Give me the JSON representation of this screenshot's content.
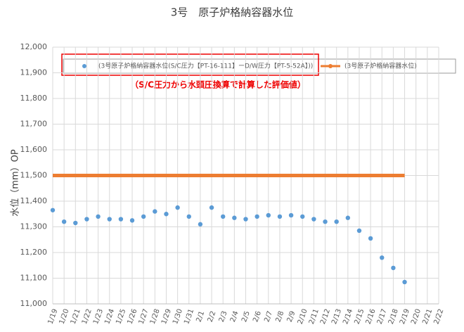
{
  "chart_data": {
    "type": "scatter-line",
    "title": "3号　原子炉格納容器水位",
    "y_label": "水位（mm）OP",
    "annotation": "（S/C圧力から水頭圧換算で計算した評価値）",
    "categories": [
      "1/19",
      "1/20",
      "1/21",
      "1/22",
      "1/23",
      "1/24",
      "1/25",
      "1/26",
      "1/27",
      "1/28",
      "1/29",
      "1/30",
      "1/31",
      "2/1",
      "2/2",
      "2/3",
      "2/4",
      "2/5",
      "2/6",
      "2/7",
      "2/8",
      "2/9",
      "2/10",
      "2/11",
      "2/12",
      "2/13",
      "2/14",
      "2/15",
      "2/16",
      "2/17",
      "2/18",
      "2/19",
      "2/20",
      "2/21",
      "2/22"
    ],
    "series": [
      {
        "name": "(3号原子炉格納容器水位(S/C圧力【PT-16-111】ーD/W圧力【PT-5-52A】))",
        "color": "#5b9bd5",
        "style": "markers",
        "values": [
          11365,
          11320,
          11315,
          11330,
          11340,
          11330,
          11330,
          11325,
          11340,
          11360,
          11350,
          11375,
          11340,
          11310,
          11375,
          11340,
          11335,
          11330,
          11340,
          11345,
          11340,
          11345,
          11340,
          11330,
          11320,
          11320,
          11335,
          11285,
          11255,
          11180,
          11140,
          11085,
          null,
          null,
          null
        ]
      },
      {
        "name": "(3号原子炉格納容器水位)",
        "color": "#ed7d31",
        "style": "line",
        "values": [
          11500,
          11500,
          11500,
          11500,
          11500,
          11500,
          11500,
          11500,
          11500,
          11500,
          11500,
          11500,
          11500,
          11500,
          11500,
          11500,
          11500,
          11500,
          11500,
          11500,
          11500,
          11500,
          11500,
          11500,
          11500,
          11500,
          11500,
          11500,
          11500,
          11500,
          11500,
          11500,
          null,
          null,
          null
        ]
      }
    ],
    "ylim": [
      11000,
      12000
    ],
    "yticks": [
      {
        "value": 11000,
        "label": "11,000"
      },
      {
        "value": 11100,
        "label": "11,100"
      },
      {
        "value": 11200,
        "label": "11,200"
      },
      {
        "value": 11300,
        "label": "11,300"
      },
      {
        "value": 11400,
        "label": "11,400"
      },
      {
        "value": 11500,
        "label": "11,500"
      },
      {
        "value": 11600,
        "label": "11,600"
      },
      {
        "value": 11700,
        "label": "11,700"
      },
      {
        "value": 11800,
        "label": "11,800"
      },
      {
        "value": 11900,
        "label": "11,900"
      },
      {
        "value": 12000,
        "label": "12,000"
      }
    ],
    "grid": true
  }
}
